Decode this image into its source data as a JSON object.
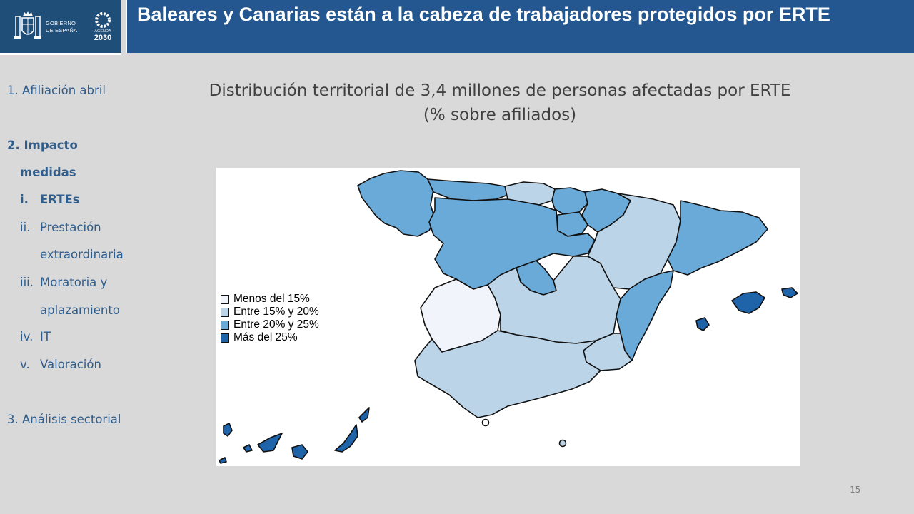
{
  "header": {
    "title": "Baleares y Canarias están a la cabeza de trabajadores protegidos por ERTE",
    "logo_line1": "GOBIERNO",
    "logo_line2": "DE ESPAÑA",
    "agenda_label": "AGENDA",
    "agenda_year": "2030"
  },
  "sidebar": {
    "item1": "1. Afiliación abril",
    "item2_line1": "2. Impacto",
    "item2_line2": "medidas",
    "sub": [
      {
        "num": "i.",
        "label": "ERTEs"
      },
      {
        "num": "ii.",
        "label": "Prestación"
      },
      {
        "num": "",
        "label": "extraordinaria"
      },
      {
        "num": "iii.",
        "label": "Moratoria y"
      },
      {
        "num": "",
        "label": "aplazamiento"
      },
      {
        "num": "iv.",
        "label": "IT"
      },
      {
        "num": "v.",
        "label": "Valoración"
      }
    ],
    "item3": "3. Análisis sectorial"
  },
  "chart": {
    "title_line1": "Distribución territorial de 3,4 millones de personas afectadas por ERTE",
    "title_line2": "(% sobre afiliados)"
  },
  "chart_data": {
    "type": "choropleth",
    "legend": [
      {
        "label": "Menos del 15%",
        "color": "#f1f4fb"
      },
      {
        "label": "Entre 15% y 20%",
        "color": "#bcd4e8"
      },
      {
        "label": "Entre 20% y 25%",
        "color": "#6aaad8"
      },
      {
        "label": "Más del 25%",
        "color": "#1f63a8"
      }
    ],
    "legend_position": "left"
  },
  "page_number": "15"
}
